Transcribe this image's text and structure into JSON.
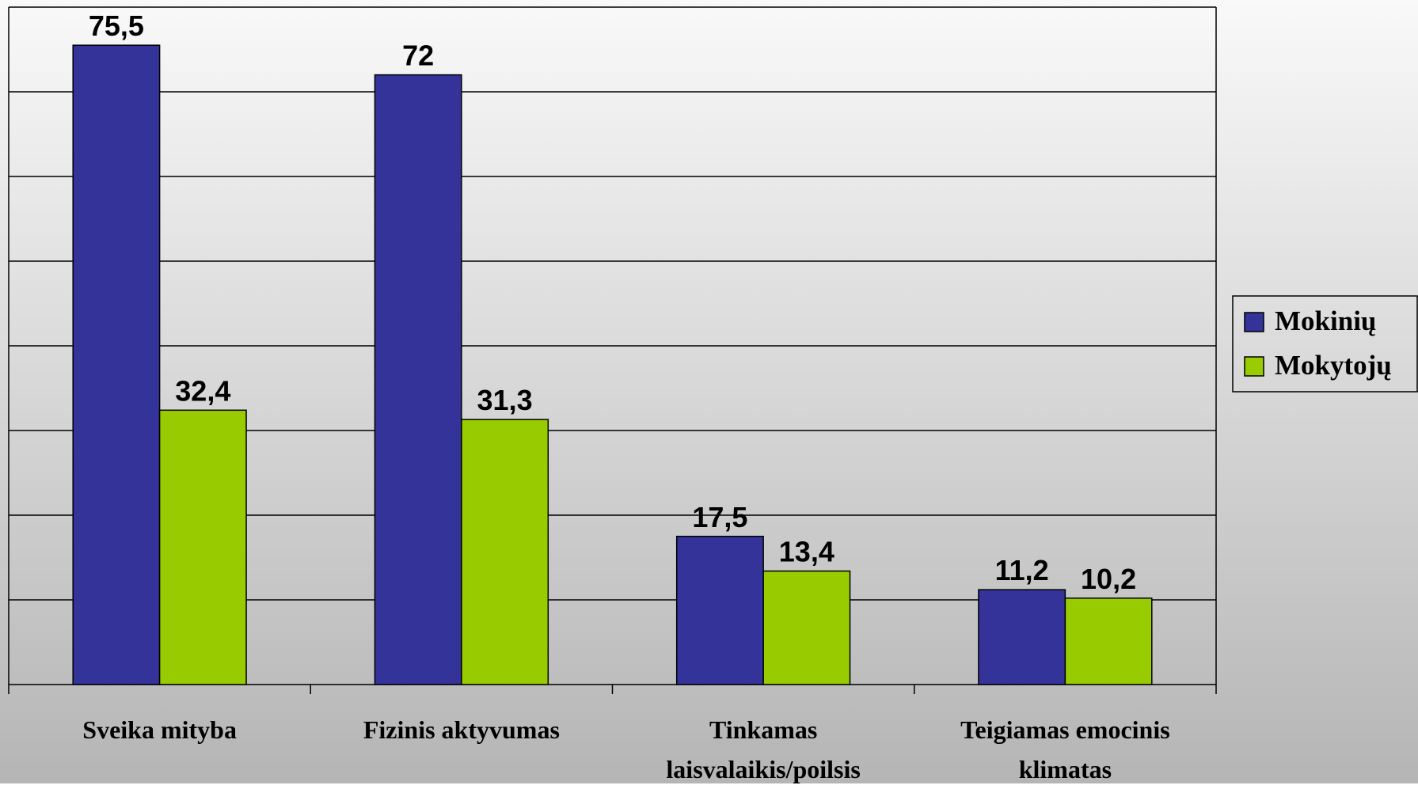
{
  "chart_data": {
    "type": "bar",
    "categories": [
      "Sveika mityba",
      "Fizinis aktyvumas",
      "Tinkamas laisvalaikis/poilsis",
      "Teigiamas emocinis klimatas"
    ],
    "series": [
      {
        "name": "Mokinių",
        "color": "#333399",
        "values": [
          75.5,
          72,
          17.5,
          11.2
        ],
        "value_labels": [
          "75,5",
          "72",
          "17,5",
          "11,2"
        ]
      },
      {
        "name": "Mokytojų",
        "color": "#99cc00",
        "values": [
          32.4,
          31.3,
          13.4,
          10.2
        ],
        "value_labels": [
          "32,4",
          "31,3",
          "13,4",
          "10,2"
        ]
      }
    ],
    "ylim": [
      0,
      80
    ],
    "yticks": [
      0,
      10,
      20,
      30,
      40,
      50,
      60,
      70,
      80
    ],
    "grid": true,
    "legend": "right"
  }
}
